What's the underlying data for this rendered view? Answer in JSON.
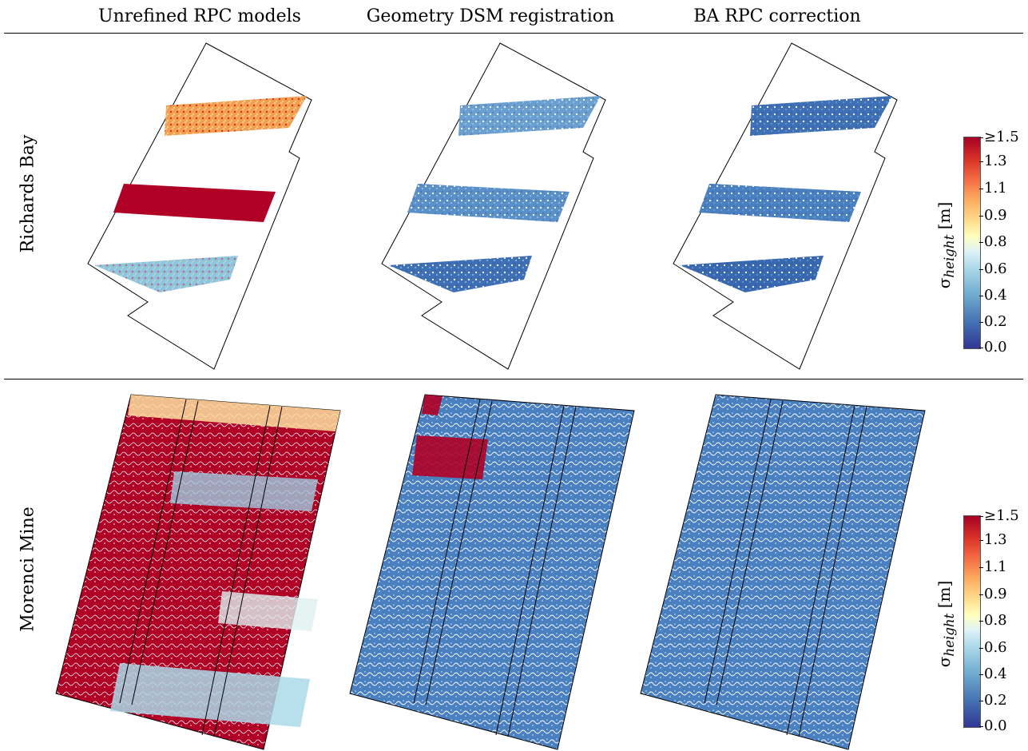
{
  "columns": [
    "Unrefined RPC models",
    "Geometry DSM registration",
    "BA RPC correction"
  ],
  "rows": [
    "Richards Bay",
    "Morenci Mine"
  ],
  "colorbar": {
    "ticks": [
      "≥1.5",
      "1.3",
      "1.1",
      "0.9",
      "0.8",
      "0.6",
      "0.4",
      "0.2",
      "0.0"
    ],
    "label_sigma": "σ",
    "label_sub": "height",
    "label_unit": "[m]"
  },
  "colors": {
    "low": "#313695",
    "mid_low": "#4575b4",
    "mid": "#ffffbf",
    "high": "#d73027",
    "max": "#a50026"
  }
}
